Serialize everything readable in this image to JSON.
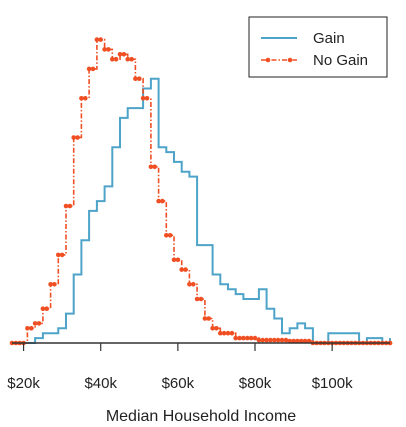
{
  "chart_data": {
    "type": "line",
    "style": "step histogram",
    "xlabel": "Median Household Income",
    "ylabel": "",
    "xlim": [
      17000,
      115000
    ],
    "ylim": [
      0,
      330
    ],
    "x_ticks": [
      20000,
      40000,
      60000,
      80000,
      100000
    ],
    "x_tick_labels": [
      "$20k",
      "$40k",
      "$60k",
      "$80k",
      "$100k"
    ],
    "bin_width": 2000,
    "grid": false,
    "legend": "top-right",
    "series": [
      {
        "name": "Gain",
        "color": "#4da3c8",
        "line_style": "solid",
        "x": [
          17000,
          19000,
          21000,
          23000,
          25000,
          27000,
          29000,
          31000,
          33000,
          35000,
          37000,
          39000,
          41000,
          43000,
          45000,
          47000,
          49000,
          51000,
          53000,
          55000,
          57000,
          59000,
          61000,
          63000,
          65000,
          67000,
          69000,
          71000,
          73000,
          75000,
          77000,
          79000,
          81000,
          83000,
          85000,
          87000,
          89000,
          91000,
          93000,
          95000,
          97000,
          99000,
          101000,
          103000,
          105000,
          107000,
          109000,
          111000,
          113000,
          115000
        ],
        "y": [
          0,
          0,
          0,
          5,
          10,
          10,
          15,
          30,
          70,
          105,
          135,
          145,
          160,
          200,
          230,
          240,
          240,
          260,
          270,
          200,
          195,
          185,
          175,
          170,
          100,
          100,
          70,
          60,
          55,
          50,
          45,
          45,
          55,
          35,
          25,
          10,
          15,
          20,
          15,
          0,
          0,
          10,
          10,
          10,
          10,
          0,
          5,
          5,
          0,
          5
        ]
      },
      {
        "name": "No Gain",
        "color": "#f04e23",
        "line_style": "dot-dash with markers",
        "x": [
          17000,
          19000,
          21000,
          23000,
          25000,
          27000,
          29000,
          31000,
          33000,
          35000,
          37000,
          39000,
          41000,
          43000,
          45000,
          47000,
          49000,
          51000,
          53000,
          55000,
          57000,
          59000,
          61000,
          63000,
          65000,
          67000,
          69000,
          71000,
          73000,
          75000,
          77000,
          79000,
          81000,
          83000,
          85000,
          87000,
          89000,
          91000,
          93000,
          95000,
          97000,
          99000,
          101000,
          103000,
          105000,
          107000,
          109000,
          111000,
          113000,
          115000
        ],
        "y": [
          0,
          0,
          15,
          20,
          35,
          60,
          90,
          140,
          210,
          250,
          280,
          310,
          300,
          290,
          295,
          290,
          270,
          250,
          180,
          145,
          110,
          85,
          75,
          60,
          45,
          25,
          15,
          10,
          10,
          5,
          5,
          5,
          3,
          3,
          3,
          3,
          2,
          2,
          2,
          0,
          0,
          0,
          0,
          0,
          0,
          0,
          0,
          0,
          0,
          0
        ]
      }
    ]
  }
}
